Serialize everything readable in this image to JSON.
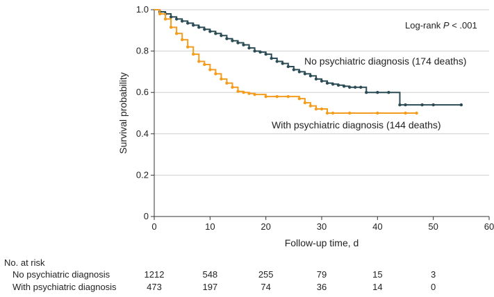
{
  "chart_data": {
    "type": "line",
    "xlabel": "Follow-up time, d",
    "ylabel": "Survival probability",
    "xlim": [
      0,
      60
    ],
    "ylim": [
      0,
      1.0
    ],
    "x_ticks": [
      "0",
      "10",
      "20",
      "30",
      "40",
      "50",
      "60"
    ],
    "y_ticks": [
      "0",
      "0.2",
      "0.4",
      "0.6",
      "0.8",
      "1.0"
    ],
    "annotation": {
      "prefix": "Log-rank ",
      "italic": "P",
      "suffix": " < .001"
    },
    "colors": {
      "no_psych": "#2b4b55",
      "with_psych": "#f39c1e"
    },
    "series": [
      {
        "name": "No psychiatric diagnosis (174 deaths)",
        "x": [
          0,
          1,
          2,
          3,
          4,
          5,
          6,
          7,
          8,
          9,
          10,
          11,
          12,
          13,
          14,
          15,
          16,
          17,
          18,
          19,
          20,
          21,
          22,
          23,
          24,
          25,
          26,
          27,
          28,
          29,
          30,
          31,
          32,
          33,
          34,
          35,
          36,
          37,
          38,
          40,
          42,
          44,
          45,
          48,
          50,
          55
        ],
        "y": [
          1.0,
          0.99,
          0.98,
          0.965,
          0.955,
          0.945,
          0.935,
          0.925,
          0.915,
          0.905,
          0.895,
          0.885,
          0.875,
          0.86,
          0.85,
          0.84,
          0.83,
          0.815,
          0.8,
          0.795,
          0.785,
          0.765,
          0.75,
          0.74,
          0.725,
          0.71,
          0.7,
          0.69,
          0.68,
          0.665,
          0.655,
          0.645,
          0.64,
          0.635,
          0.63,
          0.625,
          0.625,
          0.625,
          0.6,
          0.6,
          0.6,
          0.54,
          0.54,
          0.54,
          0.54,
          0.54
        ]
      },
      {
        "name": "With psychiatric diagnosis (144 deaths)",
        "x": [
          0,
          1,
          2,
          3,
          4,
          5,
          6,
          7,
          8,
          9,
          10,
          11,
          12,
          13,
          14,
          15,
          16,
          17,
          18,
          20,
          22,
          24,
          26,
          27,
          28,
          29,
          30,
          31,
          32,
          35,
          40,
          45,
          47
        ],
        "y": [
          1.0,
          0.98,
          0.955,
          0.915,
          0.885,
          0.855,
          0.82,
          0.785,
          0.75,
          0.735,
          0.71,
          0.69,
          0.665,
          0.645,
          0.625,
          0.605,
          0.6,
          0.595,
          0.59,
          0.58,
          0.58,
          0.58,
          0.57,
          0.55,
          0.535,
          0.52,
          0.52,
          0.5,
          0.5,
          0.5,
          0.5,
          0.5,
          0.5
        ]
      }
    ],
    "risk_table": {
      "title": "No. at risk",
      "times": [
        0,
        10,
        20,
        30,
        40,
        50
      ],
      "rows": [
        {
          "label": "No psychiatric diagnosis",
          "values": [
            "1212",
            "548",
            "255",
            "79",
            "15",
            "3"
          ]
        },
        {
          "label": "With psychiatric diagnosis",
          "values": [
            "473",
            "197",
            "74",
            "36",
            "14",
            "0"
          ]
        }
      ]
    }
  }
}
